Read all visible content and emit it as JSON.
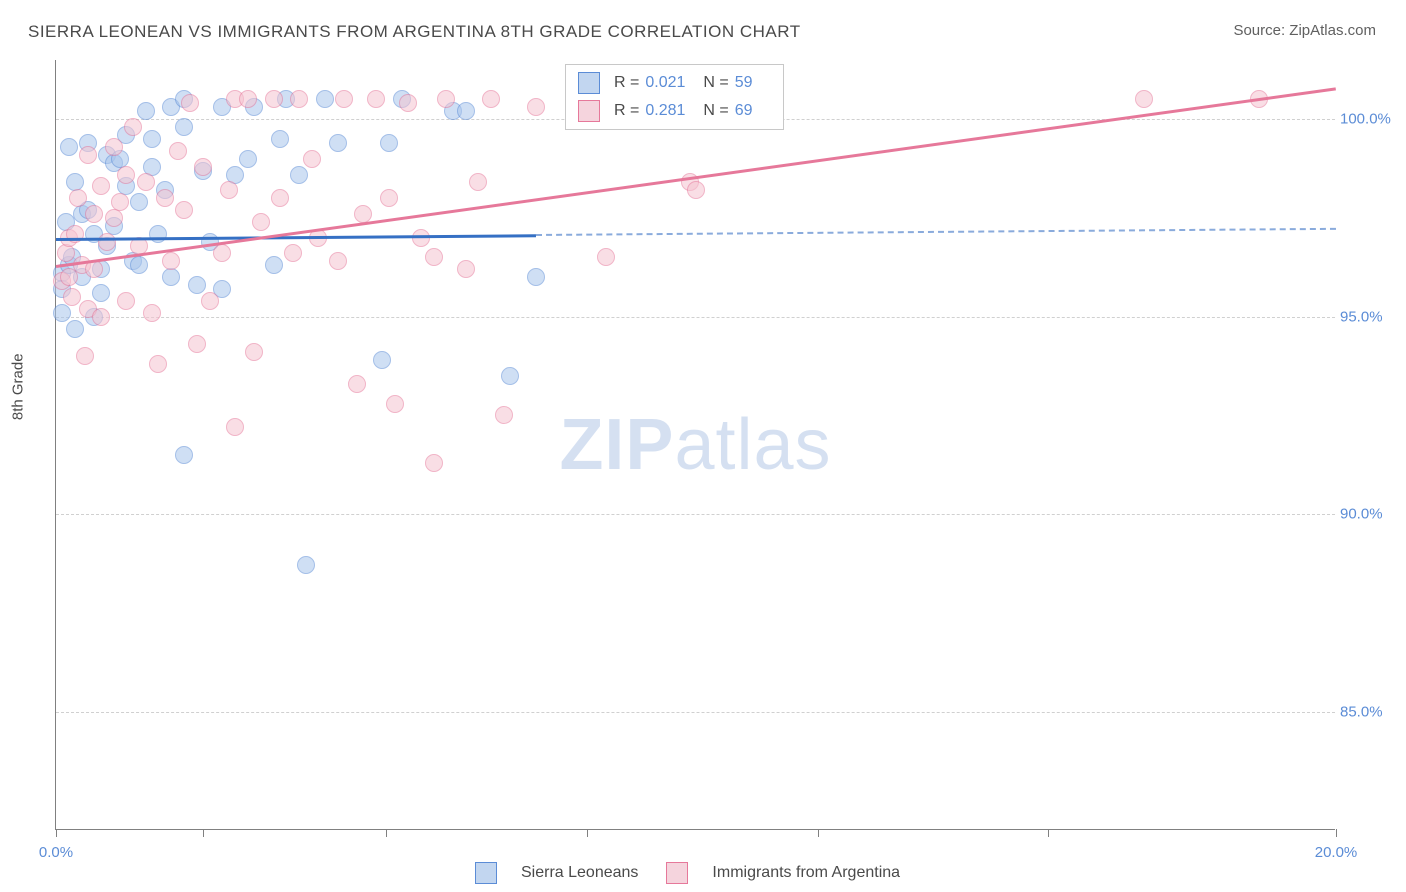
{
  "title": "SIERRA LEONEAN VS IMMIGRANTS FROM ARGENTINA 8TH GRADE CORRELATION CHART",
  "source_label": "Source: ZipAtlas.com",
  "y_axis_label": "8th Grade",
  "watermark": {
    "bold": "ZIP",
    "rest": "atlas"
  },
  "chart": {
    "type": "scatter",
    "xlim": [
      0,
      20
    ],
    "ylim": [
      82,
      101.5
    ],
    "x_ticks": [
      0,
      8.3,
      20
    ],
    "x_tick_labels": [
      "0.0%",
      "",
      "20.0%"
    ],
    "minor_x_ticks": [
      2.3,
      5.15,
      11.9,
      15.5
    ],
    "y_gridlines": [
      85,
      90,
      95,
      100
    ],
    "y_tick_labels": [
      "85.0%",
      "90.0%",
      "95.0%",
      "100.0%"
    ],
    "grid_color": "#d0d0d0",
    "background_color": "#ffffff",
    "axis_color": "#808080",
    "label_color": "#5b8cd6",
    "marker_radius": 9,
    "marker_opacity": 0.55,
    "series": [
      {
        "name": "Sierra Leoneans",
        "color_fill": "#a8c5ec",
        "color_stroke": "#5b8cd6",
        "R": "0.021",
        "N": "59",
        "trend": {
          "y_at_x0": 97.0,
          "y_at_x20": 97.25,
          "solid_until_x": 7.5
        },
        "points": [
          [
            0.1,
            96.1
          ],
          [
            0.1,
            95.7
          ],
          [
            0.1,
            95.1
          ],
          [
            0.15,
            97.4
          ],
          [
            0.2,
            96.3
          ],
          [
            0.2,
            99.3
          ],
          [
            0.25,
            96.5
          ],
          [
            0.3,
            98.4
          ],
          [
            0.3,
            94.7
          ],
          [
            0.4,
            97.6
          ],
          [
            0.4,
            96.0
          ],
          [
            0.5,
            99.4
          ],
          [
            0.5,
            97.7
          ],
          [
            0.6,
            95.0
          ],
          [
            0.6,
            97.1
          ],
          [
            0.7,
            96.2
          ],
          [
            0.7,
            95.6
          ],
          [
            0.8,
            99.1
          ],
          [
            0.8,
            96.8
          ],
          [
            0.9,
            98.9
          ],
          [
            0.9,
            97.3
          ],
          [
            1.0,
            99.0
          ],
          [
            1.1,
            99.6
          ],
          [
            1.1,
            98.3
          ],
          [
            1.2,
            96.4
          ],
          [
            1.3,
            97.9
          ],
          [
            1.3,
            96.3
          ],
          [
            1.4,
            100.2
          ],
          [
            1.5,
            98.8
          ],
          [
            1.5,
            99.5
          ],
          [
            1.6,
            97.1
          ],
          [
            1.7,
            98.2
          ],
          [
            1.8,
            100.3
          ],
          [
            1.8,
            96.0
          ],
          [
            2.0,
            99.8
          ],
          [
            2.0,
            91.5
          ],
          [
            2.0,
            100.5
          ],
          [
            2.2,
            95.8
          ],
          [
            2.3,
            98.7
          ],
          [
            2.4,
            96.9
          ],
          [
            2.6,
            100.3
          ],
          [
            2.6,
            95.7
          ],
          [
            2.8,
            98.6
          ],
          [
            3.0,
            99.0
          ],
          [
            3.1,
            100.3
          ],
          [
            3.4,
            96.3
          ],
          [
            3.5,
            99.5
          ],
          [
            3.6,
            100.5
          ],
          [
            3.8,
            98.6
          ],
          [
            3.9,
            88.7
          ],
          [
            4.2,
            100.5
          ],
          [
            4.4,
            99.4
          ],
          [
            5.1,
            93.9
          ],
          [
            5.2,
            99.4
          ],
          [
            5.4,
            100.5
          ],
          [
            6.2,
            100.2
          ],
          [
            6.4,
            100.2
          ],
          [
            7.1,
            93.5
          ],
          [
            7.5,
            96.0
          ]
        ]
      },
      {
        "name": "Immigrants from Argentina",
        "color_fill": "#f5c4d1",
        "color_stroke": "#e6789a",
        "R": "0.281",
        "N": "69",
        "trend": {
          "y_at_x0": 96.3,
          "y_at_x20": 100.8,
          "solid_until_x": 20
        },
        "points": [
          [
            0.1,
            95.9
          ],
          [
            0.15,
            96.6
          ],
          [
            0.2,
            96.0
          ],
          [
            0.2,
            97.0
          ],
          [
            0.25,
            95.5
          ],
          [
            0.3,
            97.1
          ],
          [
            0.35,
            98.0
          ],
          [
            0.4,
            96.3
          ],
          [
            0.45,
            94.0
          ],
          [
            0.5,
            99.1
          ],
          [
            0.5,
            95.2
          ],
          [
            0.6,
            97.6
          ],
          [
            0.6,
            96.2
          ],
          [
            0.7,
            98.3
          ],
          [
            0.7,
            95.0
          ],
          [
            0.8,
            96.9
          ],
          [
            0.9,
            99.3
          ],
          [
            0.9,
            97.5
          ],
          [
            1.0,
            97.9
          ],
          [
            1.1,
            98.6
          ],
          [
            1.1,
            95.4
          ],
          [
            1.2,
            99.8
          ],
          [
            1.3,
            96.8
          ],
          [
            1.4,
            98.4
          ],
          [
            1.5,
            95.1
          ],
          [
            1.6,
            93.8
          ],
          [
            1.7,
            98.0
          ],
          [
            1.8,
            96.4
          ],
          [
            1.9,
            99.2
          ],
          [
            2.0,
            97.7
          ],
          [
            2.1,
            100.4
          ],
          [
            2.2,
            94.3
          ],
          [
            2.3,
            98.8
          ],
          [
            2.4,
            95.4
          ],
          [
            2.6,
            96.6
          ],
          [
            2.7,
            98.2
          ],
          [
            2.8,
            100.5
          ],
          [
            2.8,
            92.2
          ],
          [
            3.0,
            100.5
          ],
          [
            3.1,
            94.1
          ],
          [
            3.2,
            97.4
          ],
          [
            3.4,
            100.5
          ],
          [
            3.5,
            98.0
          ],
          [
            3.7,
            96.6
          ],
          [
            3.8,
            100.5
          ],
          [
            4.0,
            99.0
          ],
          [
            4.1,
            97.0
          ],
          [
            4.4,
            96.4
          ],
          [
            4.5,
            100.5
          ],
          [
            4.7,
            93.3
          ],
          [
            4.8,
            97.6
          ],
          [
            5.0,
            100.5
          ],
          [
            5.2,
            98.0
          ],
          [
            5.3,
            92.8
          ],
          [
            5.5,
            100.4
          ],
          [
            5.7,
            97.0
          ],
          [
            5.9,
            96.5
          ],
          [
            5.9,
            91.3
          ],
          [
            6.1,
            100.5
          ],
          [
            6.4,
            96.2
          ],
          [
            6.6,
            98.4
          ],
          [
            6.8,
            100.5
          ],
          [
            7.0,
            92.5
          ],
          [
            7.5,
            100.3
          ],
          [
            8.6,
            96.5
          ],
          [
            9.9,
            98.4
          ],
          [
            10.0,
            98.2
          ],
          [
            17.0,
            100.5
          ],
          [
            18.8,
            100.5
          ]
        ]
      }
    ]
  },
  "legend_top": {
    "rows": [
      {
        "swatch": "blue",
        "r_label": "R =",
        "r_value": "0.021",
        "n_label": "N =",
        "n_value": "59"
      },
      {
        "swatch": "pink",
        "r_label": "R =",
        "r_value": "0.281",
        "n_label": "N =",
        "n_value": "69"
      }
    ]
  },
  "legend_bottom": {
    "items": [
      {
        "swatch": "blue",
        "label": "Sierra Leoneans"
      },
      {
        "swatch": "pink",
        "label": "Immigrants from Argentina"
      }
    ]
  }
}
